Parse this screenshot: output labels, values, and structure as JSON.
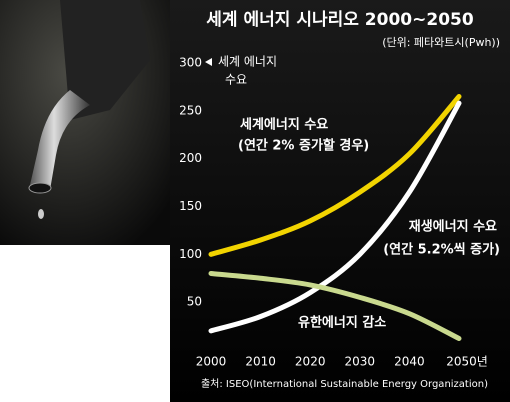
{
  "chart_data": {
    "type": "line",
    "title": "세계 에너지 시나리오 2000~2050",
    "subtitle": "(단위: 페타와트시(Pwh))",
    "y_label": [
      "세계 에너지",
      "수요"
    ],
    "x": [
      2000,
      2010,
      2020,
      2030,
      2040,
      2050
    ],
    "xlim": [
      2000,
      2050
    ],
    "xticks": [
      2000,
      2010,
      2020,
      2030,
      2040,
      {
        "value": 2050,
        "label": "2050년"
      }
    ],
    "ylim": [
      0,
      300
    ],
    "yticks": [
      50,
      100,
      150,
      200,
      250,
      300
    ],
    "series": [
      {
        "name": "세계에너지 수요",
        "note": "(연간 2% 증가할 경우)",
        "color": "#f2d400",
        "values": [
          100,
          115,
          135,
          165,
          205,
          265
        ]
      },
      {
        "name": "재생에너지 수요",
        "note": "(연간 5.2%씩 증가)",
        "color": "#ffffff",
        "values": [
          20,
          35,
          60,
          100,
          165,
          258
        ]
      },
      {
        "name": "유한에너지 감소",
        "color": "#c9d98e",
        "values": [
          80,
          75,
          68,
          55,
          38,
          12
        ]
      }
    ],
    "source": "출처: ISEO(International Sustainable Energy Organization)"
  }
}
